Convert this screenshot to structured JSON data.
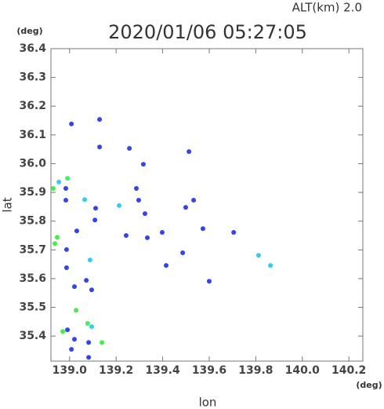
{
  "chart_data": {
    "type": "scatter",
    "subtitle": "ALT(km)  2.0",
    "title": "2020/01/06 05:27:05",
    "y_unit": "(deg)",
    "x_unit": "(deg)",
    "x_label": "lon",
    "y_label": "lat",
    "xlim": [
      138.92,
      140.26
    ],
    "ylim": [
      35.313,
      36.4
    ],
    "xticks": [
      {
        "value": 139,
        "label": "139.0"
      },
      139.2,
      139.4,
      139.6,
      139.8,
      {
        "value": 140,
        "label": "140.0"
      },
      140.2
    ],
    "yticks": [
      36.4,
      36.3,
      36.2,
      36.1,
      {
        "value": 36,
        "label": "36.0"
      },
      35.9,
      35.8,
      35.7,
      35.6,
      35.5,
      35.4
    ],
    "x": [
      139.008,
      139.129,
      139.129,
      138.991,
      138.954,
      138.984,
      138.984,
      138.93,
      138.947,
      138.937,
      138.987,
      139.065,
      139.112,
      139.109,
      139.213,
      139.287,
      139.297,
      139.573,
      139.533,
      139.499,
      139.705,
      139.812,
      139.863,
      139.6,
      139.415,
      139.486,
      139.028,
      139.078,
      139.095,
      139.139,
      138.971,
      138.991,
      139.008,
      139.021,
      139.082,
      139.082,
      139.072,
      139.095,
      139.021,
      138.987,
      139.088,
      139.031,
      139.334,
      139.243,
      139.398,
      139.324,
      139.317,
      139.513,
      139.257
    ],
    "y": [
      36.138,
      36.154,
      36.058,
      35.949,
      35.936,
      35.914,
      35.873,
      35.914,
      35.744,
      35.722,
      35.701,
      35.875,
      35.845,
      35.804,
      35.854,
      35.914,
      35.873,
      35.774,
      35.873,
      35.848,
      35.761,
      35.681,
      35.646,
      35.591,
      35.646,
      35.69,
      35.49,
      35.444,
      35.433,
      35.378,
      35.416,
      35.422,
      35.354,
      35.389,
      35.378,
      35.326,
      35.594,
      35.561,
      35.572,
      35.638,
      35.665,
      35.766,
      35.742,
      35.75,
      35.761,
      35.826,
      35.998,
      36.042,
      36.053
    ],
    "point_colors": [
      "#3344ee",
      "#3344ee",
      "#3344ee",
      "#44ee66",
      "#33ccee",
      "#3344ee",
      "#3344ee",
      "#44ee44",
      "#44ee44",
      "#44ee44",
      "#3344ee",
      "#33ccee",
      "#3344ee",
      "#3344ee",
      "#33ccee",
      "#3344ee",
      "#3344ee",
      "#3344ee",
      "#3344ee",
      "#3344ee",
      "#3344ee",
      "#33ccee",
      "#33ccee",
      "#3344ee",
      "#3344ee",
      "#3344ee",
      "#44ee44",
      "#44ee66",
      "#33ccee",
      "#44ee44",
      "#44ee44",
      "#3344ee",
      "#3344ee",
      "#3344ee",
      "#3344ee",
      "#3344ee",
      "#3344ee",
      "#3344ee",
      "#3344ee",
      "#3344ee",
      "#33ccee",
      "#3344ee",
      "#3344ee",
      "#3344ee",
      "#3344ee",
      "#3344ee",
      "#3344ee",
      "#3344ee",
      "#3344ee"
    ]
  }
}
